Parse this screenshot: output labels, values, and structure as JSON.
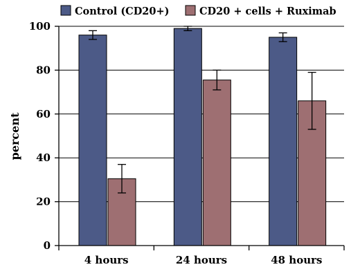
{
  "chart_data": {
    "type": "bar",
    "title": "",
    "xlabel": "",
    "ylabel": "percent",
    "ylim": [
      0,
      100
    ],
    "yticks": [
      0,
      20,
      40,
      60,
      80,
      100
    ],
    "grid": true,
    "legend_position": "top",
    "categories": [
      "4 hours",
      "24 hours",
      "48 hours"
    ],
    "series": [
      {
        "name": "Control (CD20+)",
        "color": "#4c5a87",
        "values": [
          96,
          99,
          95
        ],
        "errors": [
          2,
          1,
          2
        ]
      },
      {
        "name": "CD20 + cells + Ruximab",
        "color": "#9e6f72",
        "values": [
          30.5,
          75.5,
          66
        ],
        "errors": [
          6.5,
          4.5,
          13
        ]
      }
    ]
  }
}
